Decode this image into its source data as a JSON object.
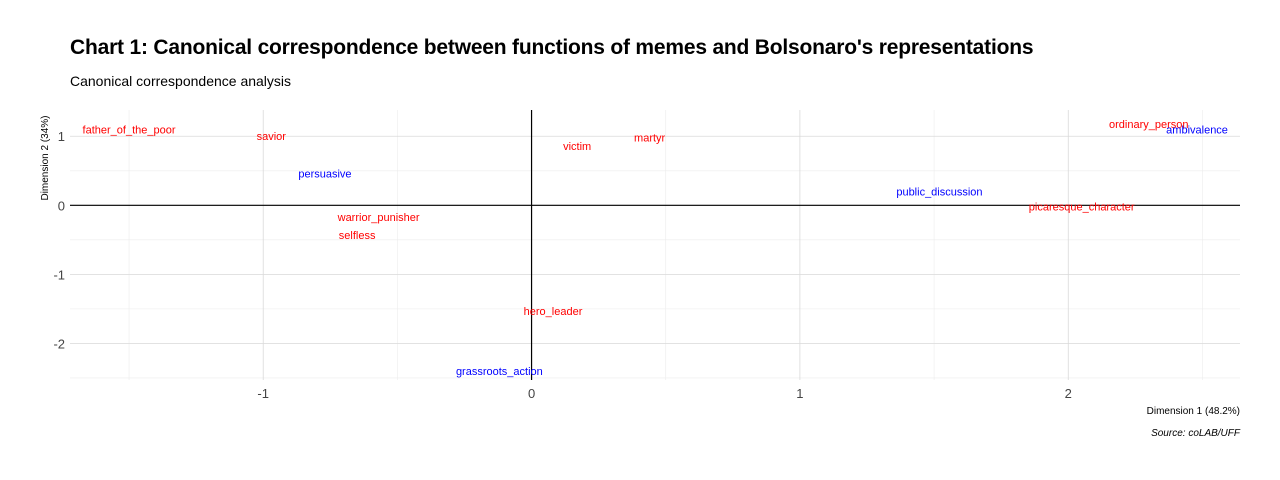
{
  "chart_data": {
    "type": "scatter",
    "title": "Chart 1: Canonical correspondence between functions of memes and Bolsonaro's representations",
    "subtitle": "Canonical correspondence analysis",
    "xlabel": "Dimension 1 (48.2%)",
    "ylabel": "Dimension 2 (34%)",
    "caption": "Source: coLAB/UFF",
    "xlim": [
      -1.72,
      2.64
    ],
    "ylim": [
      -2.53,
      1.38
    ],
    "x_ticks": [
      -1,
      0,
      1,
      2
    ],
    "y_ticks": [
      1,
      0,
      -1,
      -2
    ],
    "grid": true,
    "legend": "none",
    "series": [
      {
        "color": "#ff0000",
        "points": [
          {
            "label": "father_of_the_poor",
            "x": -1.5,
            "y": 1.1
          },
          {
            "label": "savior",
            "x": -0.97,
            "y": 1.0
          },
          {
            "label": "victim",
            "x": 0.17,
            "y": 0.86
          },
          {
            "label": "martyr",
            "x": 0.44,
            "y": 0.98
          },
          {
            "label": "ordinary_person",
            "x": 2.3,
            "y": 1.18
          },
          {
            "label": "picaresque_character",
            "x": 2.05,
            "y": -0.02
          },
          {
            "label": "warrior_punisher",
            "x": -0.57,
            "y": -0.17
          },
          {
            "label": "selfless",
            "x": -0.65,
            "y": -0.43
          },
          {
            "label": "hero_leader",
            "x": 0.08,
            "y": -1.53
          }
        ]
      },
      {
        "color": "#0000ff",
        "points": [
          {
            "label": "ambivalence",
            "x": 2.48,
            "y": 1.1
          },
          {
            "label": "persuasive",
            "x": -0.77,
            "y": 0.46
          },
          {
            "label": "public_discussion",
            "x": 1.52,
            "y": 0.2
          },
          {
            "label": "grassroots_action",
            "x": -0.12,
            "y": -2.4
          }
        ]
      }
    ]
  }
}
